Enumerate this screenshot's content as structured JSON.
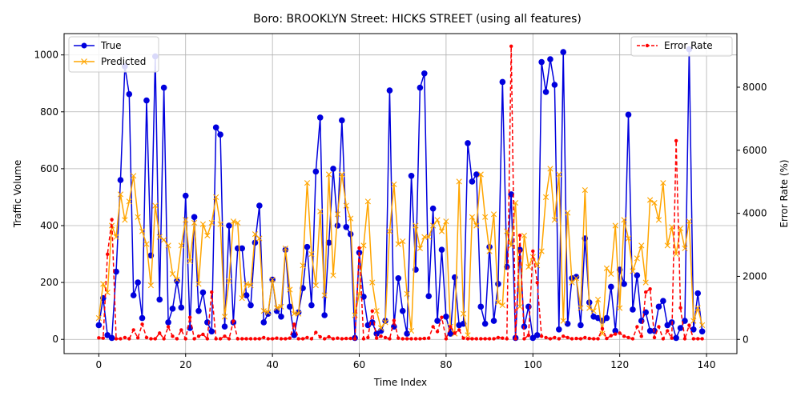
{
  "chart_data": {
    "type": "line",
    "title": "Boro: BROOKLYN Street: HICKS STREET (using all features)",
    "xlabel": "Time Index",
    "ylabel": "Traffic Volume",
    "y2label": "Error Rate (%)",
    "xlim": [
      -8,
      147
    ],
    "ylim": [
      -50,
      1075
    ],
    "y2lim": [
      -450,
      9700
    ],
    "xticks": [
      0,
      20,
      40,
      60,
      80,
      100,
      120,
      140
    ],
    "yticks": [
      0,
      200,
      400,
      600,
      800,
      1000
    ],
    "y2ticks": [
      0,
      2000,
      4000,
      6000,
      8000
    ],
    "grid": true,
    "legend_left": "upper-left",
    "legend_right": "upper-right",
    "colors": {
      "true": "#0000dd",
      "predicted": "#ffa500",
      "error": "#ff0000"
    },
    "x": [
      0,
      1,
      2,
      3,
      4,
      5,
      6,
      7,
      8,
      9,
      10,
      11,
      12,
      13,
      14,
      15,
      16,
      17,
      18,
      19,
      20,
      21,
      22,
      23,
      24,
      25,
      26,
      27,
      28,
      29,
      30,
      31,
      32,
      33,
      34,
      35,
      36,
      37,
      38,
      39,
      40,
      41,
      42,
      43,
      44,
      45,
      46,
      47,
      48,
      49,
      50,
      51,
      52,
      53,
      54,
      55,
      56,
      57,
      58,
      59,
      60,
      61,
      62,
      63,
      64,
      65,
      66,
      67,
      68,
      69,
      70,
      71,
      72,
      73,
      74,
      75,
      76,
      77,
      78,
      79,
      80,
      81,
      82,
      83,
      84,
      85,
      86,
      87,
      88,
      89,
      90,
      91,
      92,
      93,
      94,
      95,
      96,
      97,
      98,
      99,
      100,
      101,
      102,
      103,
      104,
      105,
      106,
      107,
      108,
      109,
      110,
      111,
      112,
      113,
      114,
      115,
      116,
      117,
      118,
      119,
      120,
      121,
      122,
      123,
      124,
      125,
      126,
      127,
      128,
      129,
      130,
      131,
      132,
      133,
      134,
      135,
      136,
      137,
      138,
      139
    ],
    "series": [
      {
        "name": "True",
        "axis": "left",
        "values": [
          50,
          145,
          15,
          5,
          238,
          560,
          960,
          862,
          155,
          200,
          75,
          840,
          295,
          995,
          140,
          885,
          60,
          108,
          205,
          112,
          505,
          40,
          430,
          100,
          165,
          60,
          28,
          745,
          720,
          45,
          400,
          60,
          320,
          320,
          155,
          120,
          340,
          470,
          60,
          90,
          210,
          100,
          80,
          315,
          115,
          15,
          95,
          180,
          325,
          120,
          590,
          780,
          85,
          340,
          600,
          400,
          770,
          395,
          370,
          5,
          305,
          150,
          50,
          60,
          20,
          30,
          65,
          875,
          45,
          215,
          100,
          20,
          575,
          245,
          885,
          935,
          152,
          460,
          65,
          315,
          80,
          20,
          218,
          50,
          55,
          690,
          555,
          580,
          115,
          55,
          325,
          65,
          195,
          905,
          255,
          510,
          5,
          315,
          45,
          115,
          5,
          15,
          975,
          870,
          985,
          895,
          35,
          1010,
          55,
          215,
          220,
          50,
          355,
          130,
          80,
          75,
          65,
          75,
          185,
          30,
          245,
          195,
          790,
          105,
          225,
          65,
          95,
          30,
          30,
          115,
          135,
          50,
          60,
          5,
          40,
          65,
          1020,
          35,
          162,
          28
        ]
      },
      {
        "name": "Predicted",
        "axis": "left",
        "values": [
          75,
          195,
          165,
          400,
          360,
          510,
          420,
          485,
          575,
          430,
          380,
          335,
          190,
          470,
          360,
          350,
          330,
          230,
          210,
          330,
          420,
          275,
          410,
          195,
          405,
          365,
          410,
          500,
          405,
          80,
          205,
          415,
          410,
          145,
          195,
          190,
          370,
          355,
          100,
          95,
          210,
          110,
          115,
          320,
          175,
          90,
          90,
          260,
          550,
          300,
          190,
          450,
          155,
          580,
          225,
          440,
          580,
          470,
          425,
          85,
          160,
          330,
          485,
          200,
          100,
          40,
          60,
          380,
          545,
          335,
          345,
          160,
          30,
          400,
          320,
          360,
          360,
          400,
          420,
          380,
          415,
          45,
          20,
          555,
          90,
          15,
          430,
          400,
          580,
          430,
          310,
          440,
          130,
          120,
          380,
          330,
          480,
          115,
          365,
          255,
          290,
          260,
          310,
          500,
          600,
          420,
          580,
          65,
          445,
          200,
          215,
          110,
          525,
          110,
          100,
          140,
          20,
          250,
          230,
          400,
          110,
          420,
          355,
          240,
          285,
          330,
          200,
          490,
          480,
          420,
          550,
          330,
          395,
          300,
          390,
          320,
          415,
          65,
          110,
          50
        ]
      },
      {
        "name": "Error Rate",
        "axis": "right",
        "values": [
          50,
          40,
          2700,
          3800,
          20,
          20,
          60,
          20,
          300,
          50,
          480,
          60,
          20,
          20,
          200,
          20,
          400,
          100,
          20,
          300,
          20,
          700,
          20,
          100,
          160,
          20,
          1500,
          20,
          20,
          100,
          20,
          580,
          20,
          20,
          20,
          20,
          20,
          20,
          60,
          20,
          20,
          40,
          20,
          20,
          40,
          480,
          20,
          20,
          60,
          20,
          220,
          80,
          20,
          80,
          20,
          40,
          20,
          30,
          30,
          20,
          2900,
          20,
          60,
          900,
          40,
          100,
          60,
          20,
          600,
          40,
          20,
          20,
          20,
          20,
          20,
          30,
          40,
          400,
          250,
          700,
          20,
          400,
          200,
          300,
          40,
          20,
          20,
          20,
          20,
          20,
          20,
          20,
          60,
          40,
          20,
          9300,
          20,
          3300,
          20,
          130,
          2800,
          1800,
          100,
          60,
          20,
          60,
          20,
          100,
          60,
          20,
          30,
          20,
          60,
          30,
          20,
          20,
          340,
          30,
          120,
          170,
          200,
          100,
          60,
          20,
          400,
          100,
          1500,
          1600,
          60,
          400,
          20,
          270,
          40,
          6300,
          1000,
          20,
          450,
          20,
          20,
          20
        ]
      }
    ]
  }
}
